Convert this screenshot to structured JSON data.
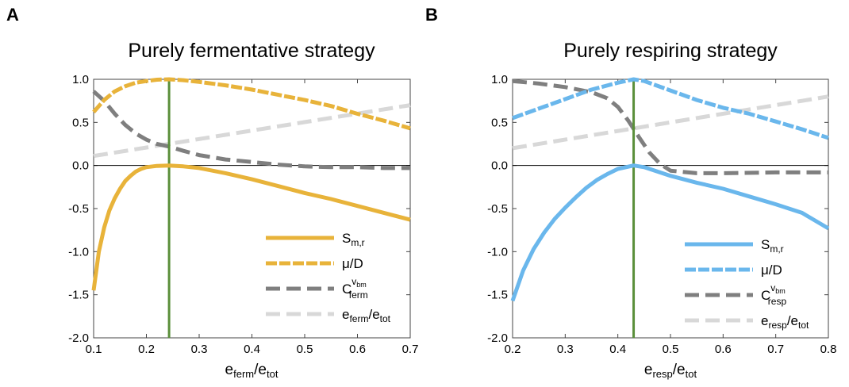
{
  "chart_data": [
    {
      "type": "line",
      "panel_label": "A",
      "title": "Purely fermentative strategy",
      "xlabel": {
        "main": "e",
        "sub": "ferm",
        "sep": "/",
        "main2": "e",
        "sub2": "tot"
      },
      "xlim": [
        0.1,
        0.7
      ],
      "ylim": [
        -2.0,
        1.0
      ],
      "xticks": [
        "0.1",
        "0.2",
        "0.3",
        "0.4",
        "0.5",
        "0.6",
        "0.7"
      ],
      "yticks": [
        "-2.0",
        "-1.5",
        "-1.0",
        "-0.5",
        "0.0",
        "0.5",
        "1.0"
      ],
      "vertical_line_x": 0.243,
      "zero_line": true,
      "legend_position": "bottom-right",
      "colors": {
        "accent": "#e8b33a",
        "dark": "#7f7f7f",
        "light": "#d8d8d8",
        "vline": "#5a8f3a"
      },
      "series": [
        {
          "key": "s",
          "style": "solid-accent",
          "legend": {
            "main": "S",
            "sub": "m,r",
            "sup": ""
          },
          "points": [
            [
              0.1,
              -1.45
            ],
            [
              0.11,
              -1.0
            ],
            [
              0.12,
              -0.72
            ],
            [
              0.13,
              -0.52
            ],
            [
              0.14,
              -0.38
            ],
            [
              0.15,
              -0.27
            ],
            [
              0.16,
              -0.18
            ],
            [
              0.17,
              -0.12
            ],
            [
              0.18,
              -0.07
            ],
            [
              0.19,
              -0.04
            ],
            [
              0.2,
              -0.02
            ],
            [
              0.22,
              -0.005
            ],
            [
              0.243,
              0.0
            ],
            [
              0.27,
              -0.01
            ],
            [
              0.3,
              -0.03
            ],
            [
              0.35,
              -0.09
            ],
            [
              0.4,
              -0.16
            ],
            [
              0.45,
              -0.24
            ],
            [
              0.5,
              -0.32
            ],
            [
              0.55,
              -0.39
            ],
            [
              0.6,
              -0.47
            ],
            [
              0.65,
              -0.55
            ],
            [
              0.7,
              -0.63
            ]
          ]
        },
        {
          "key": "mu",
          "style": "dashed-accent",
          "legend": {
            "main": "μ/D",
            "sub": "",
            "sup": ""
          },
          "points": [
            [
              0.1,
              0.62
            ],
            [
              0.12,
              0.76
            ],
            [
              0.14,
              0.86
            ],
            [
              0.16,
              0.92
            ],
            [
              0.18,
              0.96
            ],
            [
              0.2,
              0.98
            ],
            [
              0.22,
              0.995
            ],
            [
              0.243,
              1.0
            ],
            [
              0.27,
              0.99
            ],
            [
              0.3,
              0.97
            ],
            [
              0.35,
              0.93
            ],
            [
              0.4,
              0.88
            ],
            [
              0.45,
              0.82
            ],
            [
              0.5,
              0.76
            ],
            [
              0.55,
              0.69
            ],
            [
              0.6,
              0.6
            ],
            [
              0.65,
              0.52
            ],
            [
              0.7,
              0.43
            ]
          ]
        },
        {
          "key": "c",
          "style": "dashed-dark",
          "legend": {
            "main": "C",
            "sub": "ferm",
            "sup": "v",
            "supsub": "bm"
          },
          "points": [
            [
              0.1,
              0.86
            ],
            [
              0.12,
              0.75
            ],
            [
              0.14,
              0.6
            ],
            [
              0.16,
              0.47
            ],
            [
              0.18,
              0.37
            ],
            [
              0.2,
              0.3
            ],
            [
              0.22,
              0.25
            ],
            [
              0.243,
              0.22
            ],
            [
              0.27,
              0.17
            ],
            [
              0.3,
              0.12
            ],
            [
              0.35,
              0.07
            ],
            [
              0.4,
              0.04
            ],
            [
              0.45,
              0.01
            ],
            [
              0.5,
              -0.01
            ],
            [
              0.55,
              -0.02
            ],
            [
              0.6,
              -0.02
            ],
            [
              0.65,
              -0.03
            ],
            [
              0.7,
              -0.03
            ]
          ]
        },
        {
          "key": "e",
          "style": "dashed-light",
          "legend": {
            "main": "e",
            "sub": "ferm",
            "sep": "/",
            "main2": "e",
            "sub2": "tot"
          },
          "points": [
            [
              0.1,
              0.11
            ],
            [
              0.7,
              0.7
            ]
          ]
        }
      ]
    },
    {
      "type": "line",
      "panel_label": "B",
      "title": "Purely respiring strategy",
      "xlabel": {
        "main": "e",
        "sub": "resp",
        "sep": "/",
        "main2": "e",
        "sub2": "tot"
      },
      "xlim": [
        0.2,
        0.8
      ],
      "ylim": [
        -2.0,
        1.0
      ],
      "xticks": [
        "0.2",
        "0.3",
        "0.4",
        "0.5",
        "0.6",
        "0.7",
        "0.8"
      ],
      "yticks": [
        "-2.0",
        "-1.5",
        "-1.0",
        "-0.5",
        "0.0",
        "0.5",
        "1.0"
      ],
      "vertical_line_x": 0.43,
      "zero_line": true,
      "legend_position": "bottom-right",
      "colors": {
        "accent": "#6ab7ec",
        "dark": "#7f7f7f",
        "light": "#d8d8d8",
        "vline": "#5a8f3a"
      },
      "series": [
        {
          "key": "s",
          "style": "solid-accent",
          "legend": {
            "main": "S",
            "sub": "m,r",
            "sup": ""
          },
          "points": [
            [
              0.2,
              -1.57
            ],
            [
              0.22,
              -1.22
            ],
            [
              0.24,
              -0.97
            ],
            [
              0.26,
              -0.78
            ],
            [
              0.28,
              -0.62
            ],
            [
              0.3,
              -0.49
            ],
            [
              0.32,
              -0.37
            ],
            [
              0.34,
              -0.26
            ],
            [
              0.36,
              -0.17
            ],
            [
              0.38,
              -0.1
            ],
            [
              0.4,
              -0.04
            ],
            [
              0.43,
              0.0
            ],
            [
              0.45,
              -0.02
            ],
            [
              0.5,
              -0.12
            ],
            [
              0.55,
              -0.2
            ],
            [
              0.6,
              -0.27
            ],
            [
              0.65,
              -0.36
            ],
            [
              0.7,
              -0.45
            ],
            [
              0.75,
              -0.55
            ],
            [
              0.8,
              -0.73
            ]
          ]
        },
        {
          "key": "mu",
          "style": "dashed-accent",
          "legend": {
            "main": "μ/D",
            "sub": "",
            "sup": ""
          },
          "points": [
            [
              0.2,
              0.55
            ],
            [
              0.25,
              0.66
            ],
            [
              0.3,
              0.77
            ],
            [
              0.35,
              0.88
            ],
            [
              0.4,
              0.96
            ],
            [
              0.43,
              1.0
            ],
            [
              0.45,
              0.98
            ],
            [
              0.5,
              0.87
            ],
            [
              0.55,
              0.76
            ],
            [
              0.6,
              0.67
            ],
            [
              0.65,
              0.6
            ],
            [
              0.7,
              0.51
            ],
            [
              0.75,
              0.42
            ],
            [
              0.8,
              0.32
            ]
          ]
        },
        {
          "key": "c",
          "style": "dashed-dark",
          "legend": {
            "main": "C",
            "sub": "resp",
            "sup": "v",
            "supsub": "bm"
          },
          "points": [
            [
              0.2,
              0.98
            ],
            [
              0.25,
              0.95
            ],
            [
              0.3,
              0.91
            ],
            [
              0.35,
              0.85
            ],
            [
              0.38,
              0.78
            ],
            [
              0.4,
              0.68
            ],
            [
              0.42,
              0.52
            ],
            [
              0.44,
              0.33
            ],
            [
              0.46,
              0.15
            ],
            [
              0.48,
              0.02
            ],
            [
              0.5,
              -0.06
            ],
            [
              0.55,
              -0.09
            ],
            [
              0.6,
              -0.09
            ],
            [
              0.7,
              -0.08
            ],
            [
              0.8,
              -0.08
            ]
          ]
        },
        {
          "key": "e",
          "style": "dashed-light",
          "legend": {
            "main": "e",
            "sub": "resp",
            "sep": "/",
            "main2": "e",
            "sub2": "tot"
          },
          "points": [
            [
              0.2,
              0.2
            ],
            [
              0.8,
              0.8
            ]
          ]
        }
      ]
    }
  ]
}
